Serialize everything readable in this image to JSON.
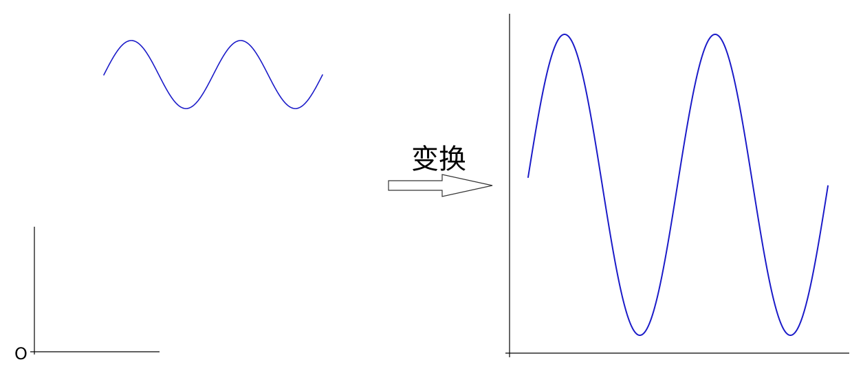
{
  "origin_label": "O",
  "transform_label": "变换",
  "colors": {
    "curve": "#1a1ac8",
    "axis": "#000000",
    "arrow_stroke": "#333333"
  },
  "left_curve": {
    "periods": 2,
    "amplitude": "small"
  },
  "right_curve": {
    "periods": 2,
    "amplitude": "large"
  }
}
